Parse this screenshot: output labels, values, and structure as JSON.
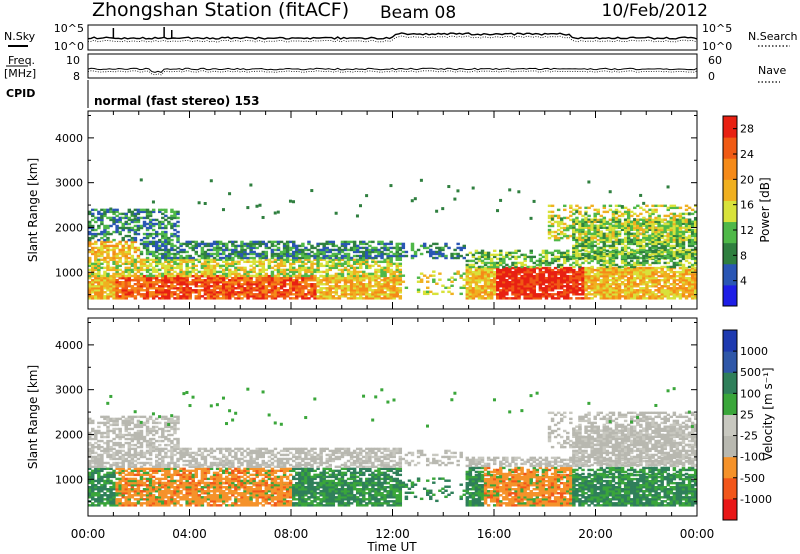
{
  "header": {
    "station_title": "Zhongshan Station (fitACF)",
    "beam": "Beam 08",
    "date": "10/Feb/2012"
  },
  "top_panels": {
    "nsky_label": "N.Sky",
    "nsky_ticks": [
      "10^5",
      "10^0"
    ],
    "nsearch_label": "N.Search",
    "nsearch_ticks": [
      "10^5",
      "10^0"
    ],
    "freq_label_1": "Freq.",
    "freq_label_2": "[MHz]",
    "freq_ticks": [
      "10",
      "8"
    ],
    "nave_label": "Nave",
    "nave_ticks": [
      "60",
      "0"
    ],
    "cpid_label": "CPID",
    "cpid_text": "normal (fast stereo) 153"
  },
  "colors": {
    "power_scale": [
      "#1e1ee6",
      "#2a56b4",
      "#2f7f3f",
      "#4fb848",
      "#d8e23a",
      "#f0b020",
      "#f58a18",
      "#f05a14",
      "#e82012"
    ],
    "velocity_scale": [
      "#e81616",
      "#f2561a",
      "#f5922a",
      "#b8b8b0",
      "#c8c8c0",
      "#3aa63a",
      "#2f7f5a",
      "#2f57a8",
      "#1e3ab0"
    ]
  },
  "chart_data": [
    {
      "type": "heatmap",
      "name": "power",
      "ylabel": "Slant Range [km]",
      "xlabel": "",
      "x_tick_labels": [
        "00:00",
        "04:00",
        "08:00",
        "12:00",
        "16:00",
        "20:00",
        "00:00"
      ],
      "xlim_hours": [
        0,
        24
      ],
      "ylim_km": [
        180,
        4600
      ],
      "y_ticks": [
        1000,
        2000,
        3000,
        4000
      ],
      "colorbar": {
        "label": "Power [dB]",
        "range": [
          0,
          30
        ],
        "tick_values": [
          4,
          8,
          12,
          16,
          20,
          24,
          28
        ],
        "tick_labels": [
          "4",
          "8",
          "12",
          "16",
          "20",
          "24",
          "28"
        ]
      }
    },
    {
      "type": "heatmap",
      "name": "velocity",
      "ylabel": "Slant Range [km]",
      "xlabel": "Time UT",
      "x_tick_labels": [
        "00:00",
        "04:00",
        "08:00",
        "12:00",
        "16:00",
        "20:00",
        "00:00"
      ],
      "xlim_hours": [
        0,
        24
      ],
      "ylim_km": [
        180,
        4600
      ],
      "y_ticks": [
        1000,
        2000,
        3000,
        4000
      ],
      "colorbar": {
        "label": "Velocity [m s⁻¹]",
        "tick_labels": [
          "1000",
          "500",
          "100",
          "25",
          "-25",
          "-100",
          "-500",
          "-1000"
        ]
      }
    }
  ]
}
